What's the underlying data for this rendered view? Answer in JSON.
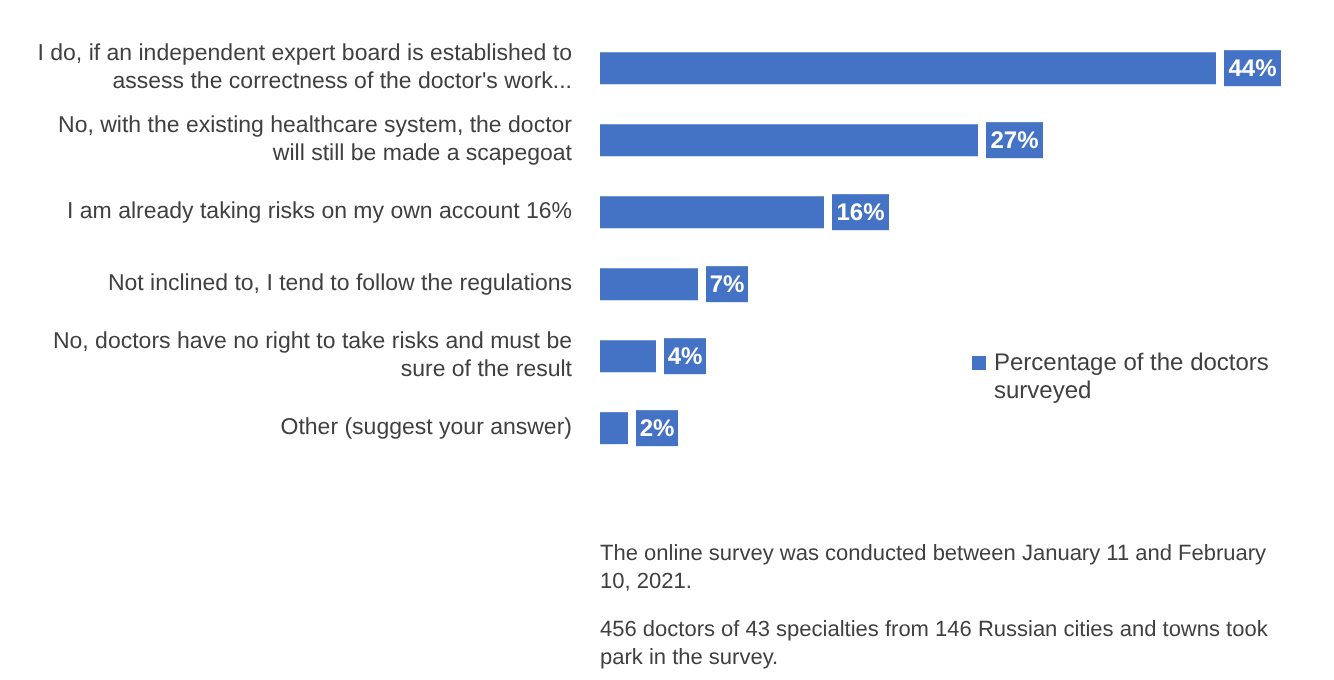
{
  "chart_data": {
    "type": "bar",
    "orientation": "horizontal",
    "categories": [
      "I do, if an independent expert board is established to assess the correctness of the doctor's work...",
      "No, with the existing healthcare system, the doctor will still be made a scapegoat",
      "I am already taking risks on my own account 16%",
      "Not inclined to, I tend to follow the regulations",
      "No, doctors have no right to take risks and must be sure of the result",
      "Other (suggest your answer)"
    ],
    "series": [
      {
        "name": "Percentage of the doctors surveyed",
        "color": "#4472c4",
        "values": [
          44,
          27,
          16,
          7,
          4,
          2
        ],
        "value_labels": [
          "44%",
          "27%",
          "16%",
          "7%",
          "4%",
          "2%"
        ]
      }
    ],
    "legend": "right",
    "annotations": [
      "The online survey was conducted between January 11 and February 10, 2021.",
      "456 doctors of 43 specialties from 146 Russian cities and towns took park in the survey."
    ]
  }
}
